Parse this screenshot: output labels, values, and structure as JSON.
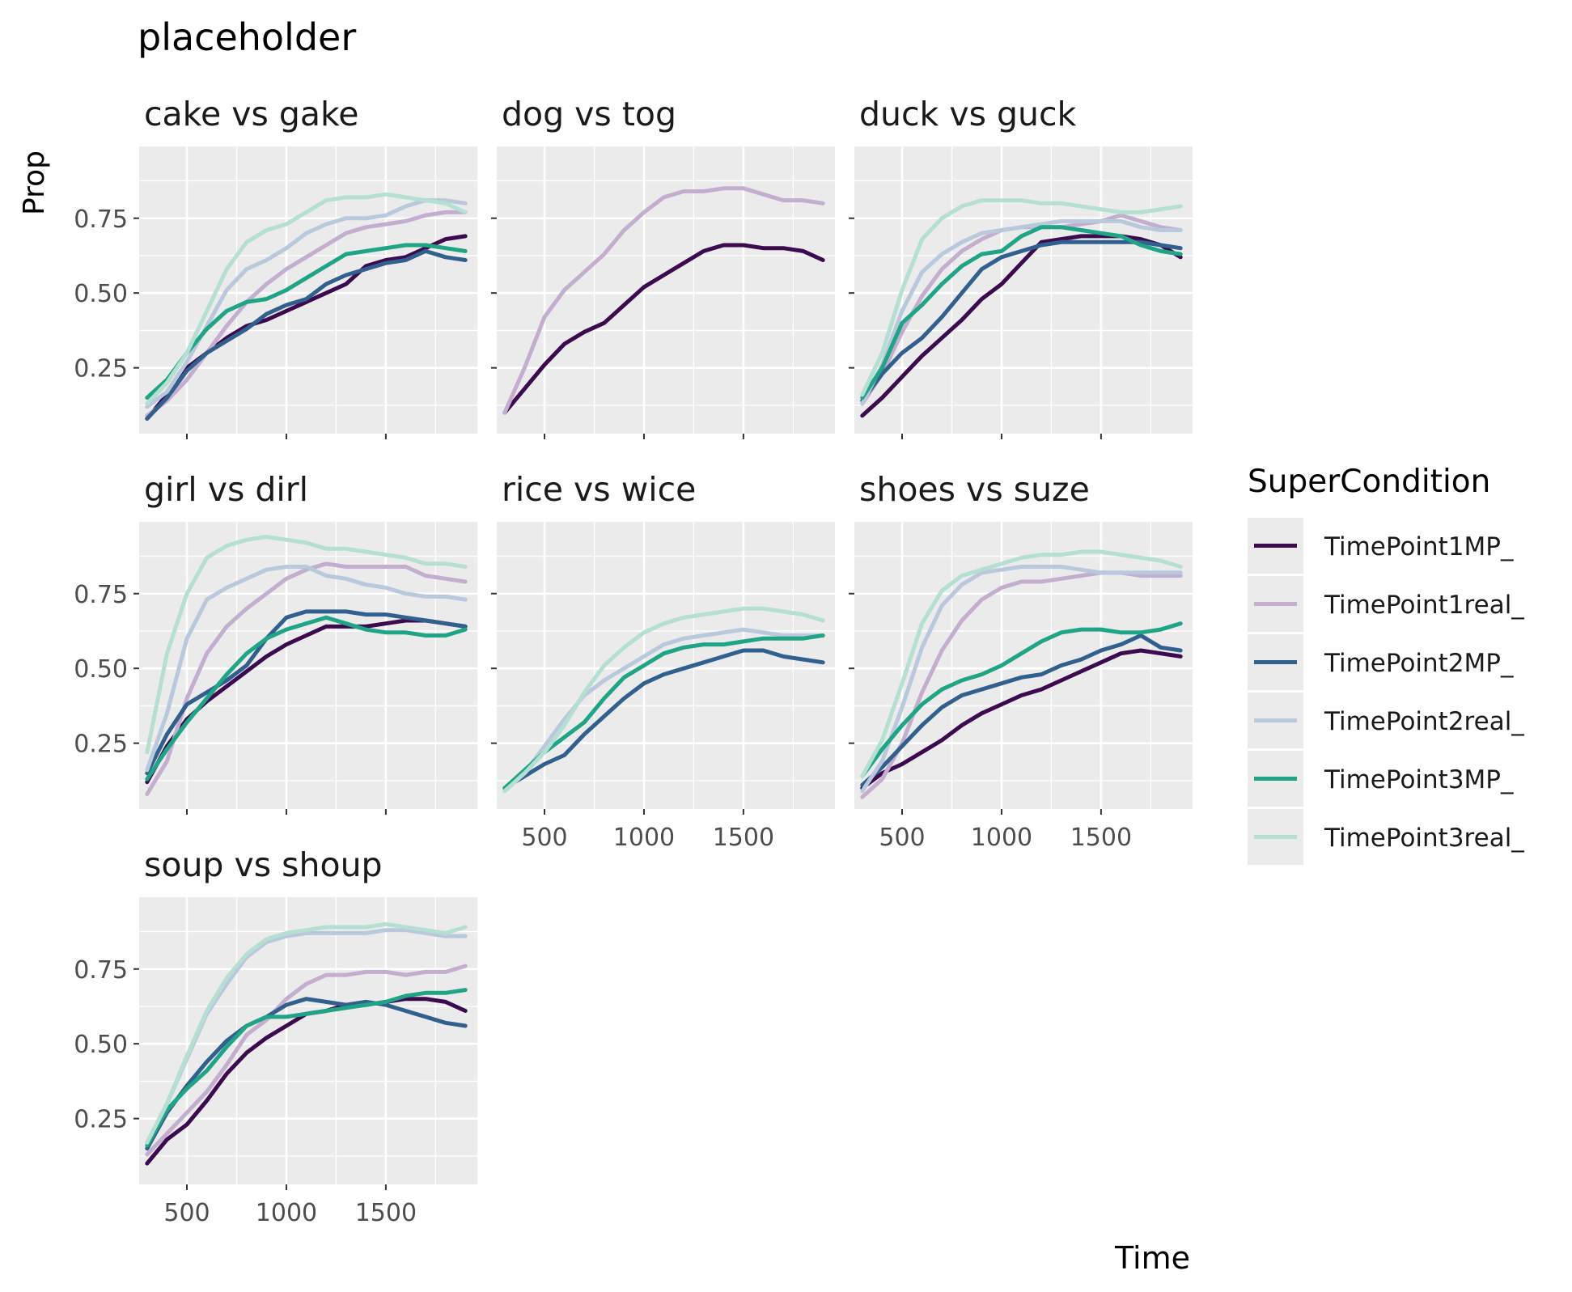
{
  "chart_data": {
    "type": "line",
    "title": "placeholder",
    "xlabel": "Time",
    "ylabel": "Prop",
    "xlim": [
      260,
      1960
    ],
    "ylim": [
      0.03,
      0.99
    ],
    "x_ticks": [
      500,
      1000,
      1500
    ],
    "x_tick_labels": [
      "500",
      "1000",
      "1500"
    ],
    "y_ticks": [
      0.25,
      0.5,
      0.75
    ],
    "y_tick_labels": [
      "0.25",
      "0.50",
      "0.75"
    ],
    "grid": true,
    "legend": {
      "title": "SuperCondition",
      "position": "right",
      "entries": [
        {
          "label": "TimePoint1MP_",
          "color": "#3b0a4f"
        },
        {
          "label": "TimePoint1real_",
          "color": "#c3aed0"
        },
        {
          "label": "TimePoint2MP_",
          "color": "#315f8e"
        },
        {
          "label": "TimePoint2real_",
          "color": "#b9c8dc"
        },
        {
          "label": "TimePoint3MP_",
          "color": "#1fa486"
        },
        {
          "label": "TimePoint3real_",
          "color": "#b5dfd3"
        }
      ]
    },
    "colors": {
      "TimePoint1MP_": "#3b0a4f",
      "TimePoint1real_": "#c3aed0",
      "TimePoint2MP_": "#315f8e",
      "TimePoint2real_": "#b9c8dc",
      "TimePoint3MP_": "#1fa486",
      "TimePoint3real_": "#b5dfd3"
    },
    "x": [
      300,
      400,
      500,
      600,
      700,
      800,
      900,
      1000,
      1100,
      1200,
      1300,
      1400,
      1500,
      1600,
      1700,
      1800,
      1900
    ],
    "panels": [
      {
        "title": "cake vs gake",
        "series": [
          {
            "name": "TimePoint1MP_",
            "values": [
              0.08,
              0.16,
              0.25,
              0.3,
              0.35,
              0.39,
              0.41,
              0.44,
              0.47,
              0.5,
              0.53,
              0.59,
              0.61,
              0.62,
              0.65,
              0.68,
              0.69
            ]
          },
          {
            "name": "TimePoint1real_",
            "values": [
              0.09,
              0.14,
              0.21,
              0.3,
              0.39,
              0.47,
              0.53,
              0.58,
              0.62,
              0.66,
              0.7,
              0.72,
              0.73,
              0.74,
              0.76,
              0.77,
              0.77
            ]
          },
          {
            "name": "TimePoint2MP_",
            "values": [
              0.08,
              0.15,
              0.24,
              0.3,
              0.34,
              0.38,
              0.43,
              0.46,
              0.48,
              0.53,
              0.56,
              0.58,
              0.6,
              0.61,
              0.64,
              0.62,
              0.61
            ]
          },
          {
            "name": "TimePoint2real_",
            "values": [
              0.12,
              0.17,
              0.27,
              0.39,
              0.51,
              0.58,
              0.61,
              0.65,
              0.7,
              0.73,
              0.75,
              0.75,
              0.76,
              0.79,
              0.81,
              0.81,
              0.8
            ]
          },
          {
            "name": "TimePoint3MP_",
            "values": [
              0.15,
              0.21,
              0.3,
              0.38,
              0.44,
              0.47,
              0.48,
              0.51,
              0.55,
              0.59,
              0.63,
              0.64,
              0.65,
              0.66,
              0.66,
              0.65,
              0.64
            ]
          },
          {
            "name": "TimePoint3real_",
            "values": [
              0.13,
              0.2,
              0.3,
              0.44,
              0.58,
              0.67,
              0.71,
              0.73,
              0.77,
              0.81,
              0.82,
              0.82,
              0.83,
              0.82,
              0.81,
              0.8,
              0.77
            ]
          }
        ]
      },
      {
        "title": "dog vs tog",
        "series": [
          {
            "name": "TimePoint1MP_",
            "values": [
              0.1,
              0.18,
              0.26,
              0.33,
              0.37,
              0.4,
              0.46,
              0.52,
              0.56,
              0.6,
              0.64,
              0.66,
              0.66,
              0.65,
              0.65,
              0.64,
              0.61
            ]
          },
          {
            "name": "TimePoint1real_",
            "values": [
              0.1,
              0.25,
              0.42,
              0.51,
              0.57,
              0.63,
              0.71,
              0.77,
              0.82,
              0.84,
              0.84,
              0.85,
              0.85,
              0.83,
              0.81,
              0.81,
              0.8
            ]
          }
        ]
      },
      {
        "title": "duck vs guck",
        "series": [
          {
            "name": "TimePoint1MP_",
            "values": [
              0.09,
              0.15,
              0.22,
              0.29,
              0.35,
              0.41,
              0.48,
              0.53,
              0.6,
              0.67,
              0.68,
              0.69,
              0.69,
              0.69,
              0.68,
              0.66,
              0.62
            ]
          },
          {
            "name": "TimePoint1real_",
            "values": [
              0.13,
              0.23,
              0.37,
              0.49,
              0.58,
              0.64,
              0.68,
              0.71,
              0.72,
              0.72,
              0.72,
              0.73,
              0.74,
              0.76,
              0.74,
              0.72,
              0.71
            ]
          },
          {
            "name": "TimePoint2MP_",
            "values": [
              0.14,
              0.23,
              0.3,
              0.35,
              0.42,
              0.5,
              0.58,
              0.62,
              0.64,
              0.66,
              0.67,
              0.67,
              0.67,
              0.67,
              0.67,
              0.66,
              0.65
            ]
          },
          {
            "name": "TimePoint2real_",
            "values": [
              0.13,
              0.26,
              0.44,
              0.57,
              0.63,
              0.67,
              0.7,
              0.71,
              0.72,
              0.73,
              0.74,
              0.74,
              0.74,
              0.74,
              0.72,
              0.71,
              0.71
            ]
          },
          {
            "name": "TimePoint3MP_",
            "values": [
              0.15,
              0.25,
              0.4,
              0.46,
              0.53,
              0.59,
              0.63,
              0.64,
              0.69,
              0.72,
              0.72,
              0.71,
              0.7,
              0.69,
              0.66,
              0.64,
              0.63
            ]
          },
          {
            "name": "TimePoint3real_",
            "values": [
              0.16,
              0.3,
              0.51,
              0.68,
              0.75,
              0.79,
              0.81,
              0.81,
              0.81,
              0.8,
              0.8,
              0.79,
              0.78,
              0.77,
              0.77,
              0.78,
              0.79
            ]
          }
        ]
      },
      {
        "title": "girl vs dirl",
        "series": [
          {
            "name": "TimePoint1MP_",
            "values": [
              0.12,
              0.24,
              0.33,
              0.39,
              0.44,
              0.49,
              0.54,
              0.58,
              0.61,
              0.64,
              0.64,
              0.64,
              0.65,
              0.66,
              0.66,
              0.65,
              0.64
            ]
          },
          {
            "name": "TimePoint1real_",
            "values": [
              0.08,
              0.19,
              0.4,
              0.55,
              0.64,
              0.7,
              0.75,
              0.8,
              0.83,
              0.85,
              0.84,
              0.84,
              0.84,
              0.84,
              0.81,
              0.8,
              0.79
            ]
          },
          {
            "name": "TimePoint2MP_",
            "values": [
              0.15,
              0.28,
              0.38,
              0.42,
              0.46,
              0.51,
              0.6,
              0.67,
              0.69,
              0.69,
              0.69,
              0.68,
              0.68,
              0.67,
              0.66,
              0.65,
              0.64
            ]
          },
          {
            "name": "TimePoint2real_",
            "values": [
              0.16,
              0.35,
              0.6,
              0.73,
              0.77,
              0.8,
              0.83,
              0.84,
              0.84,
              0.81,
              0.8,
              0.78,
              0.77,
              0.75,
              0.74,
              0.74,
              0.73
            ]
          },
          {
            "name": "TimePoint3MP_",
            "values": [
              0.13,
              0.23,
              0.32,
              0.4,
              0.48,
              0.55,
              0.6,
              0.63,
              0.65,
              0.67,
              0.65,
              0.63,
              0.62,
              0.62,
              0.61,
              0.61,
              0.63
            ]
          },
          {
            "name": "TimePoint3real_",
            "values": [
              0.22,
              0.55,
              0.75,
              0.87,
              0.91,
              0.93,
              0.94,
              0.93,
              0.92,
              0.9,
              0.9,
              0.89,
              0.88,
              0.87,
              0.85,
              0.85,
              0.84
            ]
          }
        ]
      },
      {
        "title": "rice vs wice",
        "series": [
          {
            "name": "TimePoint2MP_",
            "values": [
              0.1,
              0.14,
              0.18,
              0.21,
              0.28,
              0.34,
              0.4,
              0.45,
              0.48,
              0.5,
              0.52,
              0.54,
              0.56,
              0.56,
              0.54,
              0.53,
              0.52
            ]
          },
          {
            "name": "TimePoint2real_",
            "values": [
              0.09,
              0.15,
              0.24,
              0.33,
              0.41,
              0.46,
              0.5,
              0.54,
              0.58,
              0.6,
              0.61,
              0.62,
              0.63,
              0.62,
              0.61,
              0.61,
              0.61
            ]
          },
          {
            "name": "TimePoint3MP_",
            "values": [
              0.1,
              0.16,
              0.22,
              0.27,
              0.32,
              0.4,
              0.47,
              0.51,
              0.55,
              0.57,
              0.58,
              0.58,
              0.59,
              0.6,
              0.6,
              0.6,
              0.61
            ]
          },
          {
            "name": "TimePoint3real_",
            "values": [
              0.09,
              0.15,
              0.22,
              0.31,
              0.42,
              0.51,
              0.57,
              0.62,
              0.65,
              0.67,
              0.68,
              0.69,
              0.7,
              0.7,
              0.69,
              0.68,
              0.66
            ]
          }
        ]
      },
      {
        "title": "shoes vs suze",
        "series": [
          {
            "name": "TimePoint1MP_",
            "values": [
              0.1,
              0.15,
              0.18,
              0.22,
              0.26,
              0.31,
              0.35,
              0.38,
              0.41,
              0.43,
              0.46,
              0.49,
              0.52,
              0.55,
              0.56,
              0.55,
              0.54
            ]
          },
          {
            "name": "TimePoint1real_",
            "values": [
              0.07,
              0.13,
              0.25,
              0.42,
              0.56,
              0.66,
              0.73,
              0.77,
              0.79,
              0.79,
              0.8,
              0.81,
              0.82,
              0.82,
              0.81,
              0.81,
              0.81
            ]
          },
          {
            "name": "TimePoint2MP_",
            "values": [
              0.11,
              0.17,
              0.24,
              0.31,
              0.37,
              0.41,
              0.43,
              0.45,
              0.47,
              0.48,
              0.51,
              0.53,
              0.56,
              0.58,
              0.61,
              0.57,
              0.56
            ]
          },
          {
            "name": "TimePoint2real_",
            "values": [
              0.09,
              0.19,
              0.37,
              0.57,
              0.71,
              0.78,
              0.82,
              0.83,
              0.84,
              0.84,
              0.84,
              0.83,
              0.82,
              0.82,
              0.82,
              0.82,
              0.82
            ]
          },
          {
            "name": "TimePoint3MP_",
            "values": [
              0.14,
              0.23,
              0.31,
              0.38,
              0.43,
              0.46,
              0.48,
              0.51,
              0.55,
              0.59,
              0.62,
              0.63,
              0.63,
              0.62,
              0.62,
              0.63,
              0.65
            ]
          },
          {
            "name": "TimePoint3real_",
            "values": [
              0.14,
              0.26,
              0.45,
              0.65,
              0.76,
              0.81,
              0.83,
              0.85,
              0.87,
              0.88,
              0.88,
              0.89,
              0.89,
              0.88,
              0.87,
              0.86,
              0.84
            ]
          }
        ]
      },
      {
        "title": "soup vs shoup",
        "series": [
          {
            "name": "TimePoint1MP_",
            "values": [
              0.1,
              0.18,
              0.23,
              0.31,
              0.4,
              0.47,
              0.52,
              0.56,
              0.6,
              0.61,
              0.63,
              0.63,
              0.64,
              0.65,
              0.65,
              0.64,
              0.61
            ]
          },
          {
            "name": "TimePoint1real_",
            "values": [
              0.13,
              0.2,
              0.27,
              0.34,
              0.43,
              0.53,
              0.58,
              0.65,
              0.7,
              0.73,
              0.73,
              0.74,
              0.74,
              0.73,
              0.74,
              0.74,
              0.76
            ]
          },
          {
            "name": "TimePoint2MP_",
            "values": [
              0.15,
              0.27,
              0.36,
              0.44,
              0.51,
              0.56,
              0.59,
              0.63,
              0.65,
              0.64,
              0.63,
              0.64,
              0.63,
              0.61,
              0.59,
              0.57,
              0.56
            ]
          },
          {
            "name": "TimePoint2real_",
            "values": [
              0.17,
              0.3,
              0.45,
              0.6,
              0.7,
              0.79,
              0.84,
              0.86,
              0.87,
              0.87,
              0.87,
              0.87,
              0.88,
              0.88,
              0.87,
              0.86,
              0.86
            ]
          },
          {
            "name": "TimePoint3MP_",
            "values": [
              0.16,
              0.28,
              0.35,
              0.41,
              0.49,
              0.56,
              0.59,
              0.59,
              0.6,
              0.61,
              0.62,
              0.63,
              0.64,
              0.66,
              0.67,
              0.67,
              0.68
            ]
          },
          {
            "name": "TimePoint3real_",
            "values": [
              0.17,
              0.3,
              0.46,
              0.61,
              0.72,
              0.8,
              0.85,
              0.87,
              0.88,
              0.89,
              0.89,
              0.89,
              0.9,
              0.89,
              0.88,
              0.87,
              0.89
            ]
          }
        ]
      }
    ]
  }
}
